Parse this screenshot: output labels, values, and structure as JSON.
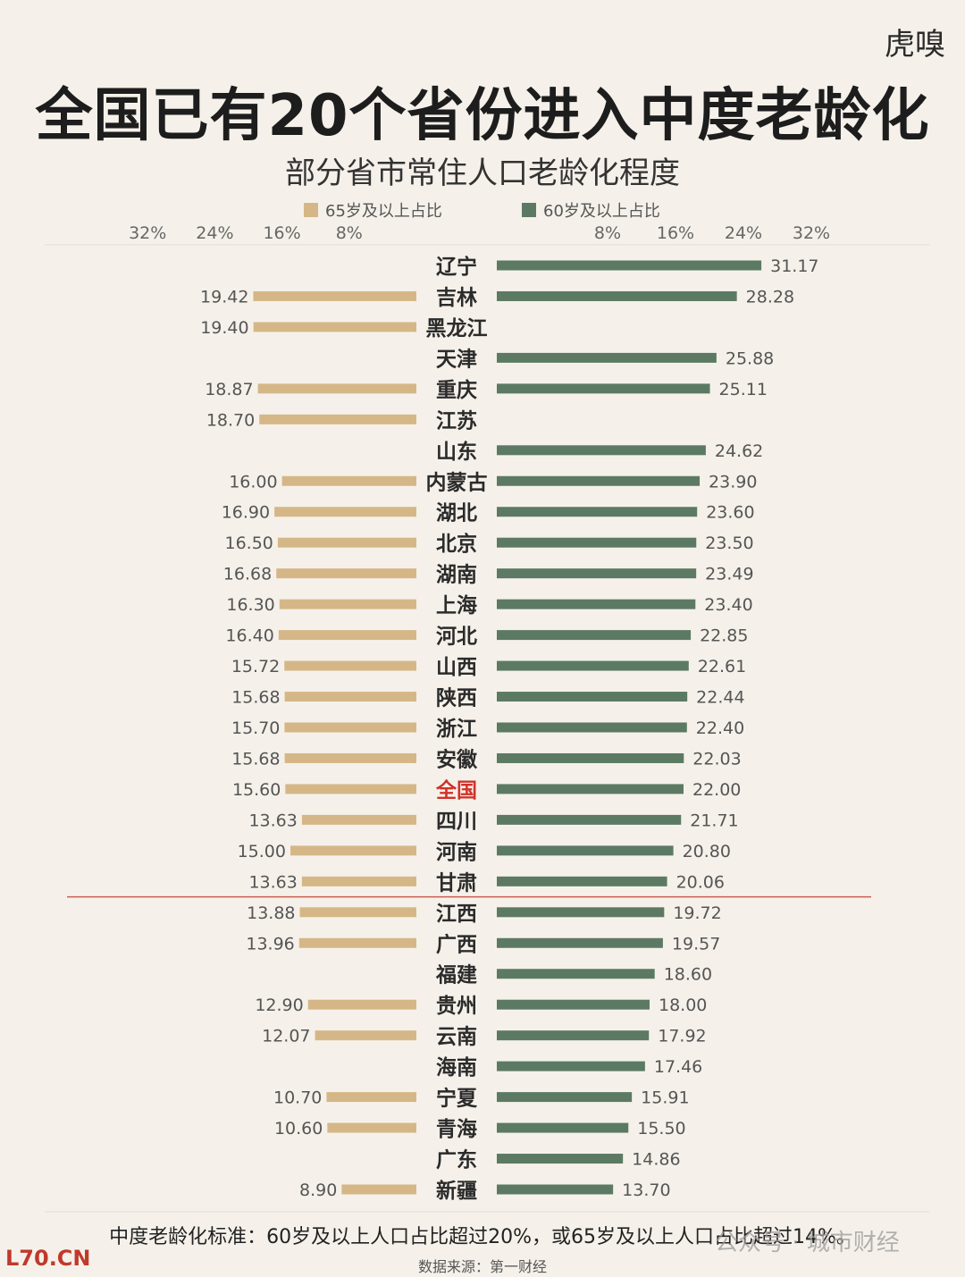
{
  "brand": "虎嗅",
  "title": "全国已有20个省份进入中度老龄化",
  "subtitle": "部分省市常住人口老龄化程度",
  "watermark_left": "L70.CN",
  "watermark_right": "公众号 · 城市财经",
  "footer": {
    "note": "中度老龄化标准：60岁及以上人口占比超过20%，或65岁及以上人口占比超过14%。",
    "source": "数据来源：第一财经"
  },
  "colors": {
    "tan": "#d5b787",
    "green": "#5c7a63",
    "threshold_line": "#c0392b",
    "highlight_label": "#d0322a"
  },
  "chart_data": {
    "type": "bar",
    "legend": [
      "65岁及以上占比",
      "60岁及以上占比"
    ],
    "left_ticks": [
      "32%",
      "24%",
      "16%",
      "8%"
    ],
    "right_ticks": [
      "8%",
      "16%",
      "24%",
      "32%"
    ],
    "categories": [
      "辽宁",
      "吉林",
      "黑龙江",
      "天津",
      "重庆",
      "江苏",
      "山东",
      "内蒙古",
      "湖北",
      "北京",
      "湖南",
      "上海",
      "河北",
      "山西",
      "陕西",
      "浙江",
      "安徽",
      "全国",
      "四川",
      "河南",
      "甘肃",
      "江西",
      "广西",
      "福建",
      "贵州",
      "云南",
      "海南",
      "宁夏",
      "青海",
      "广东",
      "新疆"
    ],
    "highlight": "全国",
    "series": [
      {
        "name": "65岁及以上占比",
        "values": [
          null,
          19.42,
          19.4,
          null,
          18.87,
          18.7,
          null,
          16.0,
          16.9,
          16.5,
          16.68,
          16.3,
          16.4,
          15.72,
          15.68,
          15.7,
          15.68,
          15.6,
          13.63,
          15.0,
          13.63,
          13.88,
          13.96,
          null,
          12.9,
          12.07,
          null,
          10.7,
          10.6,
          null,
          8.9
        ],
        "labels": [
          "",
          "19.42",
          "19.40",
          "",
          "18.87",
          "18.70",
          "",
          "16.00",
          "16.90",
          "16.50",
          "16.68",
          "16.30",
          "16.40",
          "15.72",
          "15.68",
          "15.70",
          "15.68",
          "15.60",
          "13.63",
          "15.00",
          "13.63",
          "13.88",
          "13.96",
          "",
          "12.90",
          "12.07",
          "",
          "10.70",
          "10.60",
          "",
          "8.90"
        ]
      },
      {
        "name": "60岁及以上占比",
        "values": [
          31.17,
          28.28,
          null,
          25.88,
          25.11,
          null,
          24.62,
          23.9,
          23.6,
          23.5,
          23.49,
          23.4,
          22.85,
          22.61,
          22.44,
          22.4,
          22.03,
          22.0,
          21.71,
          20.8,
          20.06,
          19.72,
          19.57,
          18.6,
          18.0,
          17.92,
          17.46,
          15.91,
          15.5,
          14.86,
          13.7
        ],
        "labels": [
          "31.17",
          "28.28",
          "",
          "25.88",
          "25.11",
          "",
          "24.62",
          "23.90",
          "23.60",
          "23.50",
          "23.49",
          "23.40",
          "22.85",
          "22.61",
          "22.44",
          "22.40",
          "22.03",
          "22.00",
          "21.71",
          "20.80",
          "20.06",
          "19.72",
          "19.57",
          "18.60",
          "18.00",
          "17.92",
          "17.46",
          "15.91",
          "15.50",
          "14.86",
          "13.70"
        ]
      }
    ],
    "threshold_after": "甘肃"
  }
}
